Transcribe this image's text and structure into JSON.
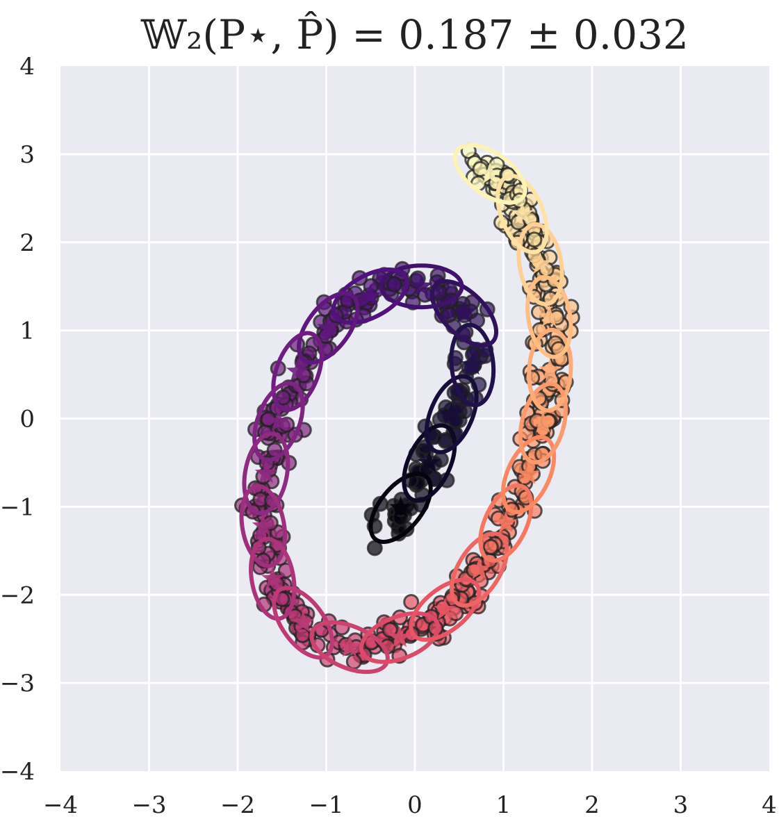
{
  "chart_data": {
    "type": "scatter",
    "title": "𝕎₂(P⋆, P̂) = 0.187 ± 0.032",
    "xlabel": "",
    "ylabel": "",
    "xlim": [
      -4,
      4
    ],
    "ylim": [
      -4,
      4
    ],
    "x_ticks": [
      "−4",
      "−3",
      "−2",
      "−1",
      "0",
      "1",
      "2",
      "3",
      "4"
    ],
    "y_ticks": [
      "−4",
      "−3",
      "−2",
      "−1",
      "0",
      "1",
      "2",
      "3",
      "4"
    ],
    "grid": true,
    "legend": "none",
    "background": "#eaeaf2",
    "colormap": [
      "#000004",
      "#1d1147",
      "#51127c",
      "#822681",
      "#b63679",
      "#e65164",
      "#fb8861",
      "#fec287",
      "#fcfdbf"
    ],
    "curve": {
      "name": "spiral",
      "t_range": [
        0,
        1
      ],
      "points": [
        [
          -0.35,
          -1.25
        ],
        [
          0.05,
          -0.75
        ],
        [
          0.35,
          -0.1
        ],
        [
          0.65,
          0.6
        ],
        [
          0.6,
          1.15
        ],
        [
          0.25,
          1.5
        ],
        [
          -0.3,
          1.5
        ],
        [
          -0.85,
          1.2
        ],
        [
          -1.3,
          0.6
        ],
        [
          -1.6,
          -0.2
        ],
        [
          -1.75,
          -1.0
        ],
        [
          -1.6,
          -1.85
        ],
        [
          -1.2,
          -2.4
        ],
        [
          -0.6,
          -2.65
        ],
        [
          0.05,
          -2.4
        ],
        [
          0.55,
          -2.0
        ],
        [
          0.95,
          -1.35
        ],
        [
          1.3,
          -0.6
        ],
        [
          1.5,
          0.15
        ],
        [
          1.55,
          0.95
        ],
        [
          1.4,
          1.85
        ],
        [
          1.1,
          2.6
        ],
        [
          0.6,
          2.95
        ]
      ]
    },
    "components": {
      "count": 26,
      "markers": "star",
      "ellipses": true
    },
    "samples": {
      "count": 600,
      "noise": 0.1,
      "marker": "circle",
      "edgecolor": "#222222",
      "alpha": 0.7
    }
  }
}
